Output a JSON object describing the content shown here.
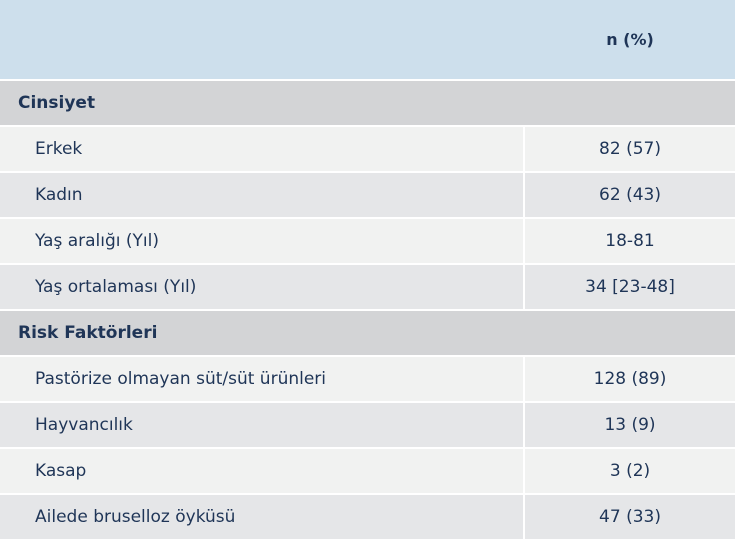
{
  "header": {
    "col1": "",
    "col2": "n (%)"
  },
  "sections": [
    {
      "title": "Cinsiyet",
      "rows": [
        {
          "label": "Erkek",
          "value": "82 (57)"
        },
        {
          "label": "Kadın",
          "value": "62 (43)"
        },
        {
          "label": "Yaş aralığı (Yıl)",
          "value": "18-81"
        },
        {
          "label": "Yaş ortalaması (Yıl)",
          "value": "34 [23-48]"
        }
      ]
    },
    {
      "title": "Risk Faktörleri",
      "rows": [
        {
          "label": "Pastörize olmayan süt/süt ürünleri",
          "value": "128 (89)"
        },
        {
          "label": "Hayvancılık",
          "value": "13 (9)"
        },
        {
          "label": "Kasap",
          "value": "3 (2)"
        },
        {
          "label": "Ailede bruselloz öyküsü",
          "value": "47 (33)"
        }
      ]
    }
  ]
}
